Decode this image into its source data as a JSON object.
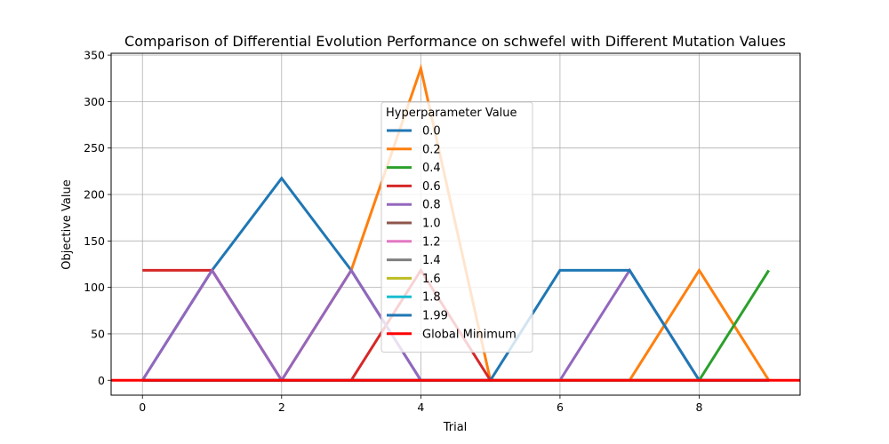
{
  "chart_data": {
    "type": "line",
    "title": "Comparison of Differential Evolution Performance on schwefel with Different Mutation Values",
    "xlabel": "Trial",
    "ylabel": "Objective Value",
    "xlim": [
      -0.45,
      9.45
    ],
    "ylim": [
      -16,
      352
    ],
    "xticks": [
      0,
      2,
      4,
      6,
      8
    ],
    "yticks": [
      0,
      50,
      100,
      150,
      200,
      250,
      300,
      350
    ],
    "grid": true,
    "legend": {
      "title": "Hyperparameter Value",
      "placement": "center"
    },
    "x": [
      0,
      1,
      2,
      3,
      4,
      5,
      6,
      7,
      8,
      9
    ],
    "series": [
      {
        "name": "0.0",
        "color": "#1f77b4",
        "values": [
          0,
          118.4,
          217.5,
          118.4,
          0,
          0,
          0,
          0,
          0,
          0
        ]
      },
      {
        "name": "0.2",
        "color": "#ff7f0e",
        "values": [
          0,
          0,
          0,
          118.4,
          335.6,
          0,
          0,
          0,
          118.4,
          0
        ]
      },
      {
        "name": "0.4",
        "color": "#2ca02c",
        "values": [
          0,
          0,
          0,
          0,
          0,
          0,
          0,
          0,
          0,
          118.4
        ]
      },
      {
        "name": "0.6",
        "color": "#d62728",
        "values": [
          118.4,
          118.4,
          0,
          0,
          118.4,
          0,
          0,
          0,
          0,
          0
        ]
      },
      {
        "name": "0.8",
        "color": "#9467bd",
        "values": [
          0,
          118.4,
          0,
          118.4,
          0,
          0,
          0,
          118.4,
          0,
          0
        ]
      },
      {
        "name": "1.0",
        "color": "#8c564b",
        "values": [
          0,
          0,
          0,
          0,
          0,
          0,
          0,
          0,
          0,
          0
        ]
      },
      {
        "name": "1.2",
        "color": "#e377c2",
        "values": [
          0,
          0,
          0,
          0,
          0,
          0,
          0,
          0,
          0,
          0
        ]
      },
      {
        "name": "1.4",
        "color": "#7f7f7f",
        "values": [
          0,
          0,
          0,
          0,
          0,
          0,
          0,
          0,
          0,
          0
        ]
      },
      {
        "name": "1.6",
        "color": "#bcbd22",
        "values": [
          0,
          0,
          0,
          0,
          0,
          0,
          0,
          0,
          0,
          0
        ]
      },
      {
        "name": "1.8",
        "color": "#17becf",
        "values": [
          0,
          0,
          0,
          0,
          0,
          0,
          0,
          0,
          0,
          0
        ]
      },
      {
        "name": "1.99",
        "color": "#1f77b4",
        "values": [
          0,
          0,
          0,
          0,
          0,
          0,
          118.4,
          118.4,
          0,
          0
        ]
      }
    ],
    "global_minimum": {
      "name": "Global Minimum",
      "color": "#ff0000",
      "value": 0
    }
  }
}
